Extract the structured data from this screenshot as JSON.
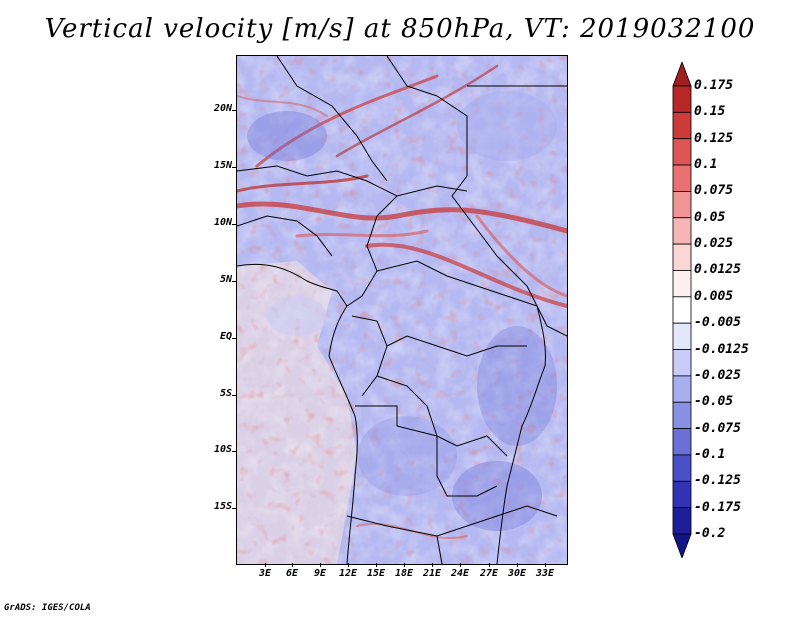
{
  "title": "Vertical velocity [m/s] at 850hPa, VT: 2019032100",
  "credit": "GrADS: IGES/COLA",
  "lat_labels": [
    "20N",
    "15N",
    "10N",
    "5N",
    "EQ",
    "5S",
    "10S",
    "15S"
  ],
  "lon_labels": [
    "3E",
    "6E",
    "9E",
    "12E",
    "15E",
    "18E",
    "21E",
    "24E",
    "27E",
    "30E",
    "33E"
  ],
  "colorbar": {
    "labels": [
      "0.175",
      "0.15",
      "0.125",
      "0.1",
      "0.075",
      "0.05",
      "0.025",
      "0.0125",
      "0.005",
      "-0.005",
      "-0.0125",
      "-0.025",
      "-0.05",
      "-0.075",
      "-0.1",
      "-0.125",
      "-0.175",
      "-0.2"
    ],
    "colors": [
      "#a01f1f",
      "#b82828",
      "#cc3a3a",
      "#dd5555",
      "#e87272",
      "#f09494",
      "#f6b6b6",
      "#fad6d6",
      "#fdf0f0",
      "#ffffff",
      "#e4e6fa",
      "#c8ccf6",
      "#a8aeee",
      "#8890e4",
      "#6a70d8",
      "#4a50c8",
      "#3034b4",
      "#1e1e9a",
      "#14148a"
    ]
  }
}
